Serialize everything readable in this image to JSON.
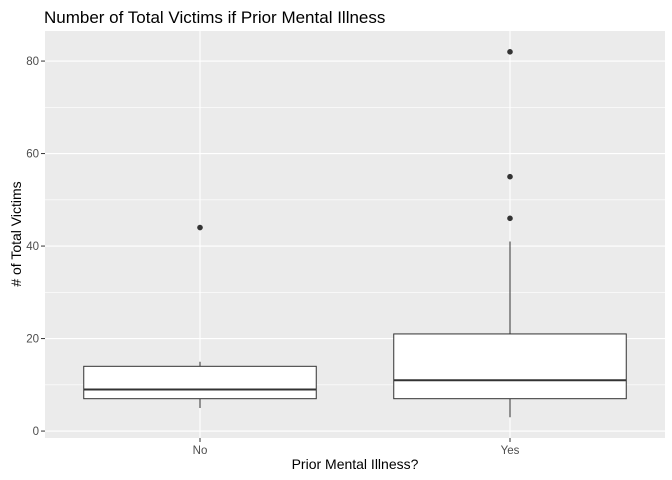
{
  "chart_data": {
    "type": "boxplot",
    "title": "Number of Total Victims if Prior Mental Illness",
    "xlabel": "Prior Mental Illness?",
    "ylabel": "# of Total Victims",
    "categories": [
      "No",
      "Yes"
    ],
    "boxes": [
      {
        "category": "No",
        "whisker_low": 5,
        "q1": 7,
        "median": 9,
        "q3": 14,
        "whisker_high": 15,
        "outliers": [
          44
        ]
      },
      {
        "category": "Yes",
        "whisker_low": 3,
        "q1": 7,
        "median": 11,
        "q3": 21,
        "whisker_high": 41,
        "outliers": [
          46,
          55,
          82
        ]
      }
    ],
    "y_ticks": [
      0,
      20,
      40,
      60,
      80
    ],
    "ylim": [
      -1.5,
      86.5
    ],
    "grid": true,
    "colors": {
      "panel_background": "#ebebeb",
      "grid": "#ffffff",
      "box_fill": "#ffffff",
      "box_stroke": "#333333",
      "outlier": "#333333"
    }
  }
}
